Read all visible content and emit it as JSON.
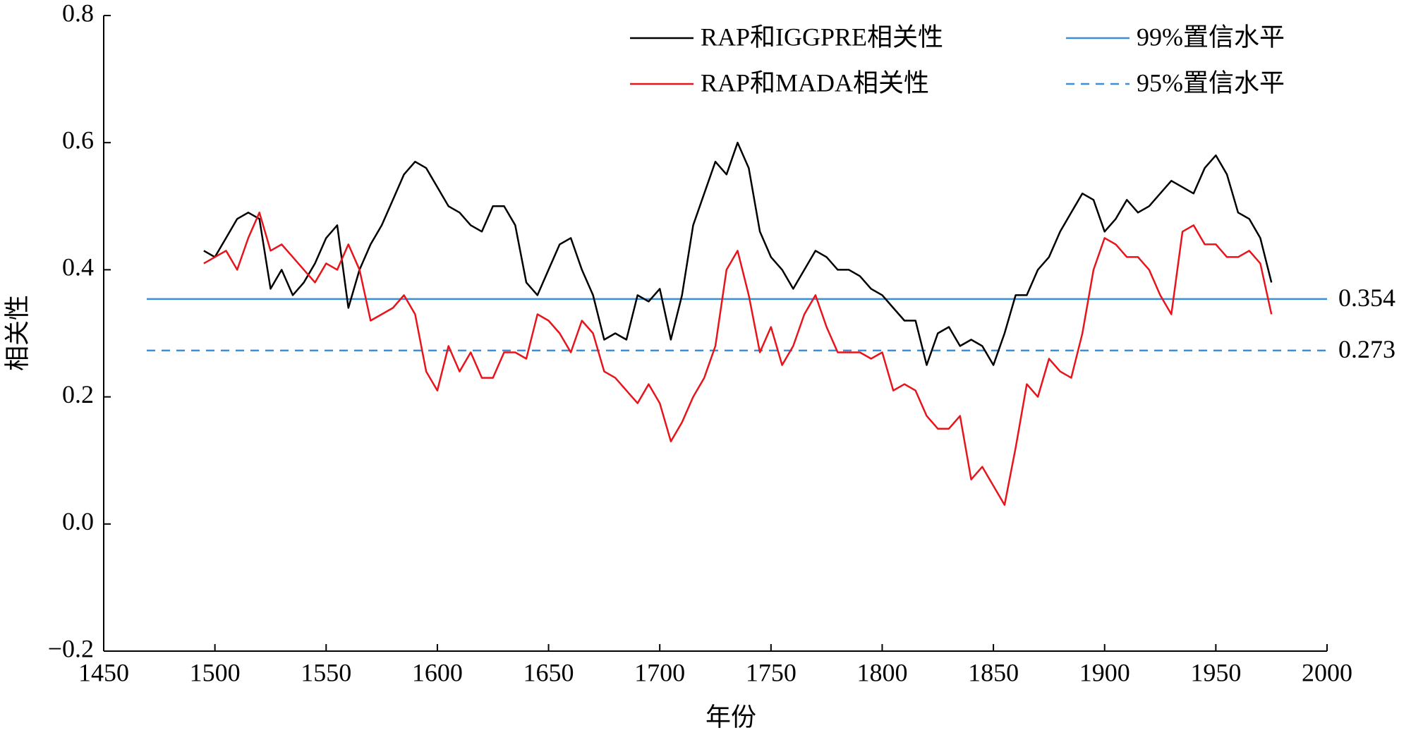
{
  "chart_data": {
    "type": "line",
    "x_label": "年份",
    "y_label": "相关性",
    "x": [
      1495,
      1500,
      1505,
      1510,
      1515,
      1520,
      1525,
      1530,
      1535,
      1540,
      1545,
      1550,
      1555,
      1560,
      1565,
      1570,
      1575,
      1580,
      1585,
      1590,
      1595,
      1600,
      1605,
      1610,
      1615,
      1620,
      1625,
      1630,
      1635,
      1640,
      1645,
      1650,
      1655,
      1660,
      1665,
      1670,
      1675,
      1680,
      1685,
      1690,
      1695,
      1700,
      1705,
      1710,
      1715,
      1720,
      1725,
      1730,
      1735,
      1740,
      1745,
      1750,
      1755,
      1760,
      1765,
      1770,
      1775,
      1780,
      1785,
      1790,
      1795,
      1800,
      1805,
      1810,
      1815,
      1820,
      1825,
      1830,
      1835,
      1840,
      1845,
      1850,
      1855,
      1860,
      1865,
      1870,
      1875,
      1880,
      1885,
      1890,
      1895,
      1900,
      1905,
      1910,
      1915,
      1920,
      1925,
      1930,
      1935,
      1940,
      1945,
      1950,
      1955,
      1960,
      1965,
      1970,
      1975
    ],
    "series": [
      {
        "name": "RAP和IGGPRE相关性",
        "color": "#000000",
        "values": [
          0.43,
          0.42,
          0.45,
          0.48,
          0.49,
          0.48,
          0.37,
          0.4,
          0.36,
          0.38,
          0.41,
          0.45,
          0.47,
          0.34,
          0.4,
          0.44,
          0.47,
          0.51,
          0.55,
          0.57,
          0.56,
          0.53,
          0.5,
          0.49,
          0.47,
          0.46,
          0.5,
          0.5,
          0.47,
          0.38,
          0.36,
          0.4,
          0.44,
          0.45,
          0.4,
          0.36,
          0.29,
          0.3,
          0.29,
          0.36,
          0.35,
          0.37,
          0.29,
          0.36,
          0.47,
          0.52,
          0.57,
          0.55,
          0.6,
          0.56,
          0.46,
          0.42,
          0.4,
          0.37,
          0.4,
          0.43,
          0.42,
          0.4,
          0.4,
          0.39,
          0.37,
          0.36,
          0.34,
          0.32,
          0.32,
          0.25,
          0.3,
          0.31,
          0.28,
          0.29,
          0.28,
          0.25,
          0.3,
          0.36,
          0.36,
          0.4,
          0.42,
          0.46,
          0.49,
          0.52,
          0.51,
          0.46,
          0.48,
          0.51,
          0.49,
          0.5,
          0.52,
          0.54,
          0.53,
          0.52,
          0.56,
          0.58,
          0.55,
          0.49,
          0.48,
          0.45,
          0.38
        ]
      },
      {
        "name": "RAP和MADA相关性",
        "color": "#e8141b",
        "values": [
          0.41,
          0.42,
          0.43,
          0.4,
          0.45,
          0.49,
          0.43,
          0.44,
          0.42,
          0.4,
          0.38,
          0.41,
          0.4,
          0.44,
          0.4,
          0.32,
          0.33,
          0.34,
          0.36,
          0.33,
          0.24,
          0.21,
          0.28,
          0.24,
          0.27,
          0.23,
          0.23,
          0.27,
          0.27,
          0.26,
          0.33,
          0.32,
          0.3,
          0.27,
          0.32,
          0.3,
          0.24,
          0.23,
          0.21,
          0.19,
          0.22,
          0.19,
          0.13,
          0.16,
          0.2,
          0.23,
          0.28,
          0.4,
          0.43,
          0.36,
          0.27,
          0.31,
          0.25,
          0.28,
          0.33,
          0.36,
          0.31,
          0.27,
          0.27,
          0.27,
          0.26,
          0.27,
          0.21,
          0.22,
          0.21,
          0.17,
          0.15,
          0.15,
          0.17,
          0.07,
          0.09,
          0.06,
          0.03,
          0.12,
          0.22,
          0.2,
          0.26,
          0.24,
          0.23,
          0.3,
          0.4,
          0.45,
          0.44,
          0.42,
          0.42,
          0.4,
          0.36,
          0.33,
          0.46,
          0.47,
          0.44,
          0.44,
          0.42,
          0.42,
          0.43,
          0.41,
          0.33
        ]
      }
    ],
    "reference_lines": [
      {
        "name": "99%置信水平",
        "value": 0.354,
        "color": "#3c8fd6",
        "dashed": false
      },
      {
        "name": "95%置信水平",
        "value": 0.273,
        "color": "#3c8fd6",
        "dashed": true
      }
    ],
    "xlim": [
      1450,
      2000
    ],
    "xticks": [
      1450,
      1500,
      1550,
      1600,
      1650,
      1700,
      1750,
      1800,
      1850,
      1900,
      1950,
      2000
    ],
    "ylim": [
      -0.2,
      0.8
    ],
    "yticks": [
      {
        "value": -0.2,
        "label": "−0.2"
      },
      {
        "value": 0,
        "label": "0.0"
      },
      0.2,
      0.4,
      0.6,
      0.8
    ],
    "legend": "upper right"
  }
}
